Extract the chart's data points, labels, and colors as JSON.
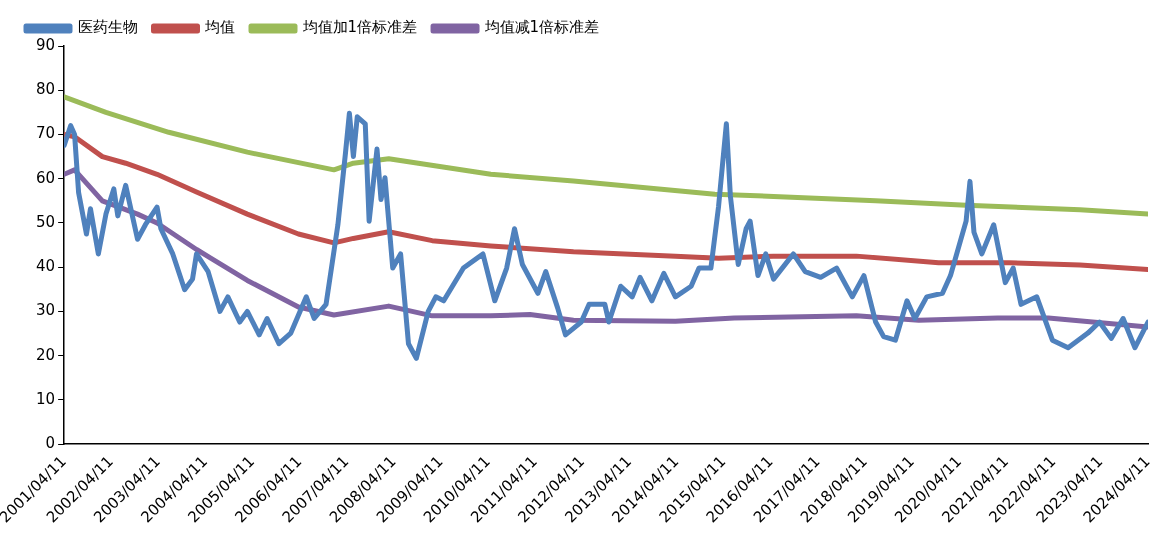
{
  "chart_data": {
    "type": "line",
    "legend": "top left",
    "grid": false,
    "ylim": [
      0,
      90
    ],
    "yticks": [
      0,
      10,
      20,
      30,
      40,
      50,
      60,
      70,
      80,
      90
    ],
    "xlim": [
      "2001-04-11",
      "2024-04-11"
    ],
    "xticks": [
      {
        "value": "2001-04-11",
        "label": "2001/04/11"
      },
      {
        "value": "2002-04-11",
        "label": "2002/04/11"
      },
      {
        "value": "2003-04-11",
        "label": "2003/04/11"
      },
      {
        "value": "2004-04-11",
        "label": "2004/04/11"
      },
      {
        "value": "2005-04-11",
        "label": "2005/04/11"
      },
      {
        "value": "2006-04-11",
        "label": "2006/04/11"
      },
      {
        "value": "2007-04-11",
        "label": "2007/04/11"
      },
      {
        "value": "2008-04-11",
        "label": "2008/04/11"
      },
      {
        "value": "2009-04-11",
        "label": "2009/04/11"
      },
      {
        "value": "2010-04-11",
        "label": "2010/04/11"
      },
      {
        "value": "2011-04-11",
        "label": "2011/04/11"
      },
      {
        "value": "2012-04-11",
        "label": "2012/04/11"
      },
      {
        "value": "2013-04-11",
        "label": "2013/04/11"
      },
      {
        "value": "2014-04-11",
        "label": "2014/04/11"
      },
      {
        "value": "2015-04-11",
        "label": "2015/04/11"
      },
      {
        "value": "2016-04-11",
        "label": "2016/04/11"
      },
      {
        "value": "2017-04-11",
        "label": "2017/04/11"
      },
      {
        "value": "2018-04-11",
        "label": "2018/04/11"
      },
      {
        "value": "2019-04-11",
        "label": "2019/04/11"
      },
      {
        "value": "2020-04-11",
        "label": "2020/04/11"
      },
      {
        "value": "2021-04-11",
        "label": "2021/04/11"
      },
      {
        "value": "2022-04-11",
        "label": "2022/04/11"
      },
      {
        "value": "2023-04-11",
        "label": "2023/04/11"
      },
      {
        "value": "2024-04-11",
        "label": "2024/04/11"
      }
    ],
    "series": [
      {
        "name": "医药生物",
        "color": "#4f81bd",
        "x": [
          "2001-04-11",
          "2001-06",
          "2001-07",
          "2001-08",
          "2001-10",
          "2001-11",
          "2002-01",
          "2002-03",
          "2002-05",
          "2002-06",
          "2002-08",
          "2002-11",
          "2003-01",
          "2003-04",
          "2003-05",
          "2003-08",
          "2003-11",
          "2004-01",
          "2004-02",
          "2004-05",
          "2004-08",
          "2004-10",
          "2005-01",
          "2005-03",
          "2005-06",
          "2005-08",
          "2005-11",
          "2006-02",
          "2006-06",
          "2006-08",
          "2006-11",
          "2007-02",
          "2007-04",
          "2007-05",
          "2007-06",
          "2007-07",
          "2007-09",
          "2007-10",
          "2007-12",
          "2008-01",
          "2008-02",
          "2008-04",
          "2008-06",
          "2008-08",
          "2008-10",
          "2009-01",
          "2009-03",
          "2009-05",
          "2009-10",
          "2010-03",
          "2010-06",
          "2010-09",
          "2010-11",
          "2011-01",
          "2011-05",
          "2011-07",
          "2011-10",
          "2011-12",
          "2012-04",
          "2012-06",
          "2012-10",
          "2012-11",
          "2013-02",
          "2013-05",
          "2013-07",
          "2013-10",
          "2014-01",
          "2014-04",
          "2014-08",
          "2014-10",
          "2015-01",
          "2015-03",
          "2015-05",
          "2015-06",
          "2015-08",
          "2015-10",
          "2015-11",
          "2016-01",
          "2016-03",
          "2016-05",
          "2016-10",
          "2017-01",
          "2017-05",
          "2017-09",
          "2018-01",
          "2018-04",
          "2018-07",
          "2018-09",
          "2018-12",
          "2019-03",
          "2019-05",
          "2019-08",
          "2019-12",
          "2020-02",
          "2020-06",
          "2020-07",
          "2020-08",
          "2020-10",
          "2021-01",
          "2021-04",
          "2021-06",
          "2021-08",
          "2021-12",
          "2022-04",
          "2022-08",
          "2023-01",
          "2023-04",
          "2023-07",
          "2023-10",
          "2024-01",
          "2024-04-11"
        ],
        "values": [
          67.5,
          72,
          70,
          56.9,
          47.5,
          53.2,
          43,
          52,
          57.7,
          51.6,
          58.5,
          46.3,
          49.6,
          53.6,
          48.7,
          43,
          34.9,
          37.3,
          43,
          39,
          30,
          33.3,
          27.6,
          30,
          24.7,
          28.4,
          22.7,
          25.1,
          33.3,
          28.4,
          31.6,
          49.6,
          65.9,
          74.8,
          65,
          74,
          72.4,
          50.4,
          66.7,
          55.3,
          60.2,
          39.8,
          43,
          22.7,
          19.4,
          30,
          33.3,
          32.4,
          39.8,
          43,
          32.4,
          39.8,
          48.7,
          40.6,
          34.1,
          39,
          30.8,
          24.7,
          27.6,
          31.6,
          31.6,
          27.6,
          35.7,
          33.3,
          37.7,
          32.4,
          38.6,
          33.3,
          35.7,
          39.8,
          39.8,
          53.6,
          72.4,
          56.1,
          40.6,
          48.7,
          50.4,
          38.1,
          43,
          37.3,
          43,
          39,
          37.7,
          39.8,
          33.3,
          38.1,
          27.6,
          24.3,
          23.5,
          32.4,
          28.4,
          33.3,
          34.1,
          38.1,
          50.4,
          59.4,
          47.9,
          43,
          49.6,
          36.5,
          39.8,
          31.6,
          33.3,
          23.5,
          21.8,
          25.1,
          27.6,
          23.9,
          28.4,
          21.8,
          27.6
        ]
      },
      {
        "name": "均值",
        "color": "#c0504d",
        "x": [
          "2001-04-11",
          "2001-07",
          "2002-02",
          "2002-08",
          "2003-04",
          "2004-02",
          "2005-03",
          "2006-04",
          "2007-01",
          "2007-06",
          "2008-03",
          "2009-02",
          "2010-05",
          "2012-02",
          "2014-04",
          "2015-03",
          "2016-05",
          "2018-02",
          "2019-11",
          "2021-05",
          "2022-11",
          "2024-04-11"
        ],
        "values": [
          70,
          69.5,
          65,
          63.5,
          61,
          57,
          52,
          47.5,
          45.5,
          46.5,
          48,
          46,
          44.8,
          43.5,
          42.5,
          42,
          42.5,
          42.5,
          41,
          41,
          40.5,
          39.5
        ]
      },
      {
        "name": "均值加1倍标准差",
        "color": "#9bbb59",
        "x": [
          "2001-04-11",
          "2002-03",
          "2003-07",
          "2005-03",
          "2007-01",
          "2007-06",
          "2008-03",
          "2010-05",
          "2012-02",
          "2015-02",
          "2016-05",
          "2018-07",
          "2020-06",
          "2022-11",
          "2024-04-11"
        ],
        "values": [
          78.5,
          75,
          70.5,
          66,
          62,
          63.5,
          64.5,
          61,
          59.5,
          56.5,
          56,
          55,
          54,
          53,
          52
        ]
      },
      {
        "name": "均值减1倍标准差",
        "color": "#8064a2",
        "x": [
          "2001-04-11",
          "2001-07",
          "2002-02",
          "2002-11",
          "2003-04",
          "2004-02",
          "2005-03",
          "2006-04",
          "2007-01",
          "2008-03",
          "2009-02",
          "2010-05",
          "2011-03",
          "2012-02",
          "2014-04",
          "2015-07",
          "2018-02",
          "2019-06",
          "2021-02",
          "2022-03",
          "2024-04-11"
        ],
        "values": [
          61,
          62,
          55,
          52,
          50,
          44,
          37,
          31,
          29.2,
          31.2,
          29,
          29,
          29.3,
          28,
          27.8,
          28.5,
          29,
          28,
          28.5,
          28.5,
          26.5
        ]
      }
    ]
  }
}
